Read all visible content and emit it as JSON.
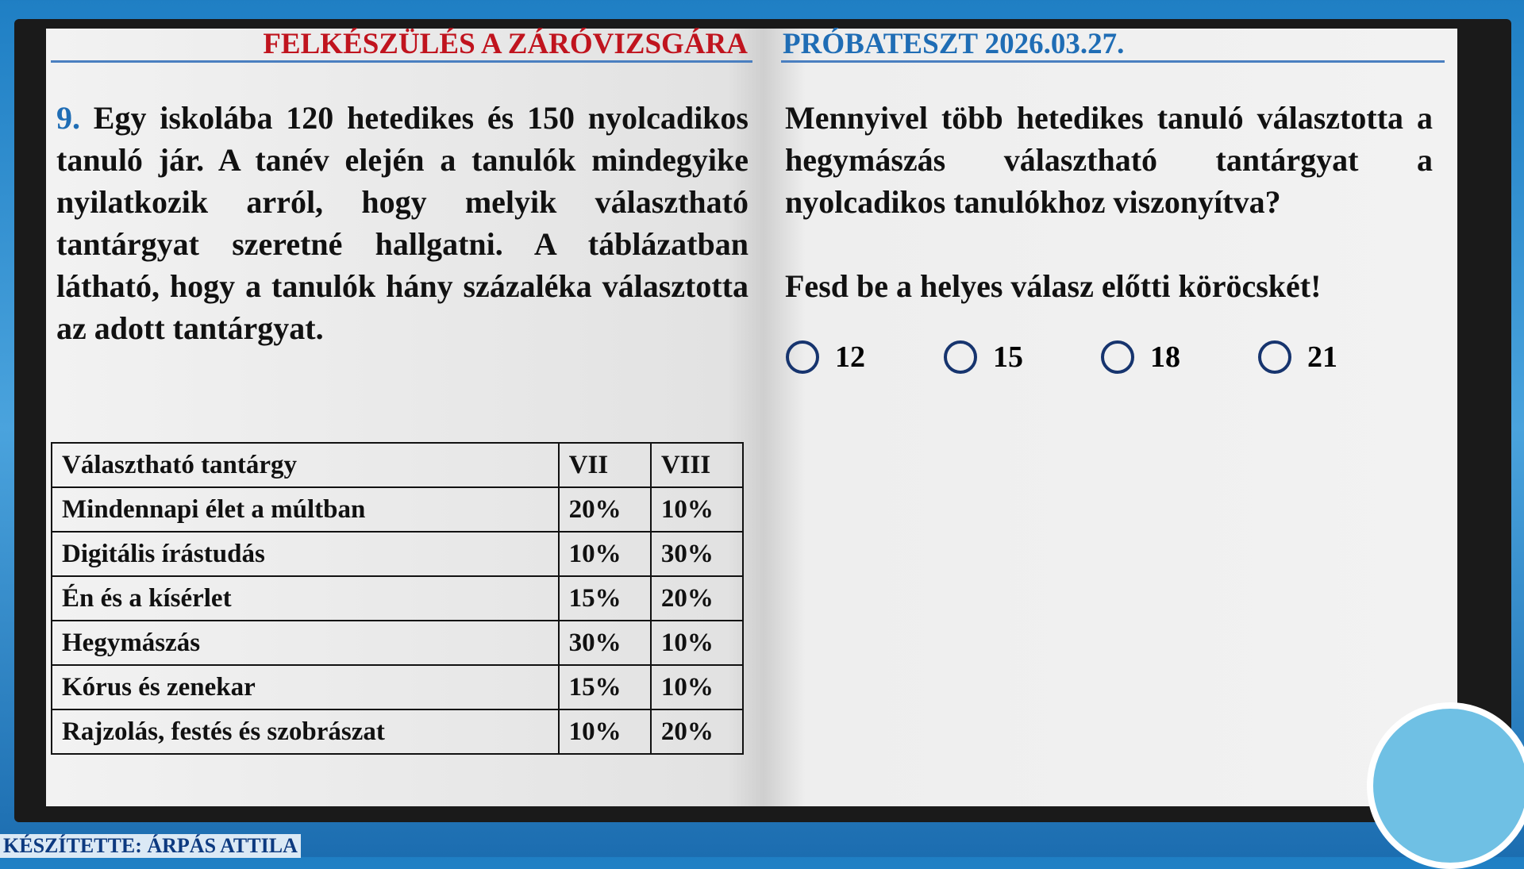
{
  "header": {
    "left_title": "FELKÉSZÜLÉS A ZÁRÓVIZSGÁRA",
    "right_title": "PRÓBATESZT 2026.03.27."
  },
  "problem": {
    "number": "9.",
    "text": "Egy iskolába 120 hetedikes és 150 nyolcadikos tanuló jár. A tanév elején a tanulók mindegyike nyilatkozik arról, hogy melyik választható tantárgyat szeretné hallgatni. A táblázatban látható, hogy a tanulók hány százaléka választotta az adott tantárgyat.",
    "question": "Mennyivel több hetedikes tanuló választotta a hegymászás választható tantárgyat a nyolcadikos tanulókhoz viszonyítva?",
    "instruction": "Fesd be a helyes válasz előtti köröcskét!",
    "options": [
      "12",
      "15",
      "18",
      "21"
    ]
  },
  "table": {
    "header": [
      "Választható tantárgy",
      "VII",
      "VIII"
    ],
    "rows": [
      [
        "Mindennapi élet a múltban",
        "20%",
        "10%"
      ],
      [
        "Digitális írástudás",
        "10%",
        "30%"
      ],
      [
        "Én és a kísérlet",
        "15%",
        "20%"
      ],
      [
        "Hegymászás",
        "30%",
        "10%"
      ],
      [
        "Kórus és zenekar",
        "15%",
        "10%"
      ],
      [
        "Rajzolás, festés és szobrászat",
        "10%",
        "20%"
      ]
    ]
  },
  "footer": {
    "author": "KÉSZÍTETTE: ÁRPÁS ATTILA"
  }
}
